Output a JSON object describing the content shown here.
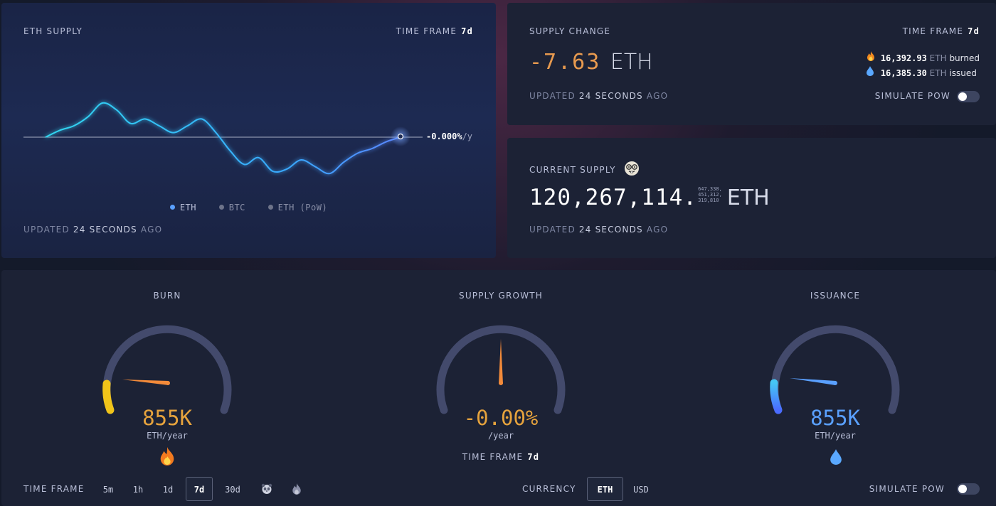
{
  "eth_supply": {
    "title": "ETH SUPPLY",
    "time_frame_label": "TIME FRAME",
    "time_frame_value": "7d",
    "current_rate": "-0.000%",
    "current_rate_unit": "/y",
    "legend": [
      "ETH",
      "BTC",
      "ETH (PoW)"
    ],
    "updated_prefix": "UPDATED",
    "updated_time": "24 SECONDS",
    "updated_suffix": "AGO",
    "colors": {
      "eth": "#5aa0ff",
      "btc": "#7a8092",
      "pow": "#7a8092",
      "line_start": "#2fd6f0",
      "line_end": "#4a8cff"
    }
  },
  "supply_change": {
    "title": "SUPPLY CHANGE",
    "time_frame_label": "TIME FRAME",
    "time_frame_value": "7d",
    "value": "-7.63",
    "unit": "ETH",
    "burned_amount": "16,392.93",
    "burned_unit": "ETH",
    "burned_label": "burned",
    "issued_amount": "16,385.30",
    "issued_unit": "ETH",
    "issued_label": "issued",
    "simulate_label": "SIMULATE PoW",
    "updated_prefix": "UPDATED",
    "updated_time": "24 SECONDS",
    "updated_suffix": "AGO",
    "colors": {
      "value": "#e79a4f"
    }
  },
  "current_supply": {
    "title": "CURRENT SUPPLY",
    "icon": "nerd-face-icon",
    "integer": "120,267,114.",
    "decimals_line1": "647,338,",
    "decimals_line2": "451,312,",
    "decimals_line3": "319,810",
    "unit": "ETH",
    "updated_prefix": "UPDATED",
    "updated_time": "24 SECONDS",
    "updated_suffix": "AGO"
  },
  "gauges": {
    "burn": {
      "title": "BURN",
      "value": "855K",
      "unit": "ETH/year",
      "icon": "fire-icon",
      "color": "#e6a33d"
    },
    "supply_growth": {
      "title": "SUPPLY GROWTH",
      "value": "-0.00%",
      "unit": "/year",
      "time_frame_label": "TIME FRAME",
      "time_frame_value": "7d",
      "color": "#e6a33d"
    },
    "issuance": {
      "title": "ISSUANCE",
      "value": "855K",
      "unit": "ETH/year",
      "icon": "droplet-icon",
      "color": "#5aa0ff"
    }
  },
  "bottom_bar": {
    "time_frame_label": "TIME FRAME",
    "time_frames": [
      "5m",
      "1h",
      "1d",
      "7d",
      "30d"
    ],
    "selected_time_frame": "7d",
    "extra_icons": [
      "panda-icon",
      "flame-merge-icon"
    ],
    "currency_label": "CURRENCY",
    "currencies": [
      "ETH",
      "USD"
    ],
    "selected_currency": "ETH",
    "simulate_label": "SIMULATE PoW"
  },
  "chart_data": {
    "type": "line",
    "title": "ETH SUPPLY",
    "series": [
      {
        "name": "ETH",
        "values": [
          0.0,
          0.3,
          0.5,
          0.9,
          1.5,
          1.2,
          0.6,
          0.8,
          0.5,
          0.2,
          0.5,
          0.8,
          0.2,
          -0.6,
          -1.2,
          -0.9,
          -1.5,
          -1.4,
          -1.0,
          -1.3,
          -1.6,
          -1.1,
          -0.7,
          -0.5,
          -0.2,
          0.0
        ]
      }
    ],
    "baseline": 0,
    "current_label": "-0.000%/y",
    "legend": [
      "ETH",
      "BTC",
      "ETH (PoW)"
    ],
    "legend_position": "bottom-center",
    "grid": false
  }
}
